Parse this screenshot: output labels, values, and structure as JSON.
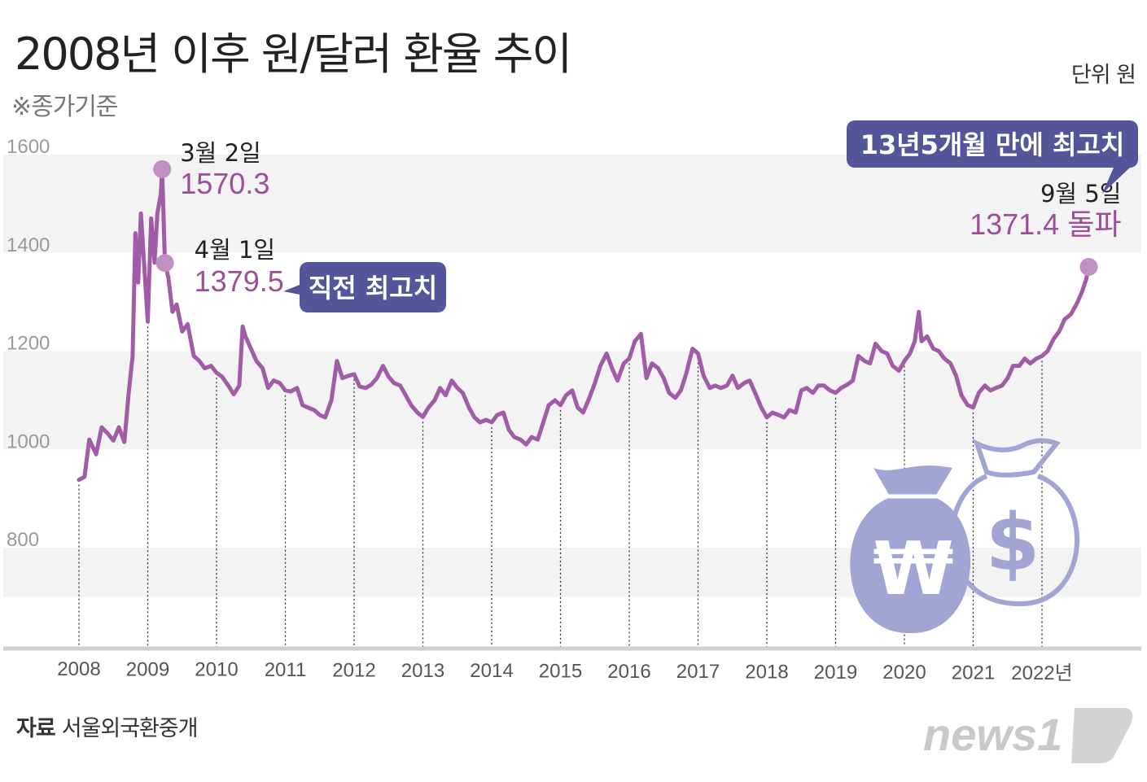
{
  "title": "2008년 이후 원/달러 환율 추이",
  "subtitle": "※종가기준",
  "unit": "단위 원",
  "source_label": "자료",
  "source_text": "서울외국환중개",
  "logo_text": "news1",
  "colors": {
    "line": "#a05ca6",
    "marker": "#c190c3",
    "annotation_value": "#9c4f97",
    "callout_box": "#55569a",
    "icon": "#a2a4d3",
    "band": "#f3f3f3"
  },
  "icons": [
    "won-money-bag-icon",
    "dollar-money-bag-icon"
  ],
  "chart_data": {
    "type": "line",
    "title": "2008년 이후 원/달러 환율 추이",
    "subtitle": "※종가기준",
    "unit": "원",
    "ylim": [
      800,
      1600
    ],
    "yticks": [
      "1600",
      "1400",
      "1200",
      "1000",
      "800"
    ],
    "xticks": [
      "2008",
      "2009",
      "2010",
      "2011",
      "2012",
      "2013",
      "2014",
      "2015",
      "2016",
      "2017",
      "2018",
      "2019",
      "2020",
      "2021",
      "2022년"
    ],
    "grid": "alternating horizontal bands",
    "series": [
      {
        "values": [
          [
            2008.0,
            938
          ],
          [
            2008.08,
            944
          ],
          [
            2008.15,
            1020
          ],
          [
            2008.25,
            990
          ],
          [
            2008.33,
            1045
          ],
          [
            2008.42,
            1032
          ],
          [
            2008.5,
            1018
          ],
          [
            2008.58,
            1045
          ],
          [
            2008.66,
            1015
          ],
          [
            2008.72,
            1110
          ],
          [
            2008.78,
            1190
          ],
          [
            2008.82,
            1440
          ],
          [
            2008.86,
            1340
          ],
          [
            2008.9,
            1480
          ],
          [
            2008.95,
            1370
          ],
          [
            2009.0,
            1260
          ],
          [
            2009.05,
            1470
          ],
          [
            2009.1,
            1380
          ],
          [
            2009.14,
            1480
          ],
          [
            2009.19,
            1520
          ],
          [
            2009.21,
            1570.3
          ],
          [
            2009.25,
            1379.5
          ],
          [
            2009.3,
            1350
          ],
          [
            2009.36,
            1280
          ],
          [
            2009.42,
            1295
          ],
          [
            2009.5,
            1240
          ],
          [
            2009.58,
            1255
          ],
          [
            2009.67,
            1190
          ],
          [
            2009.75,
            1180
          ],
          [
            2009.83,
            1165
          ],
          [
            2009.92,
            1170
          ],
          [
            2010.0,
            1156
          ],
          [
            2010.08,
            1148
          ],
          [
            2010.17,
            1130
          ],
          [
            2010.25,
            1112
          ],
          [
            2010.33,
            1130
          ],
          [
            2010.38,
            1250
          ],
          [
            2010.42,
            1230
          ],
          [
            2010.5,
            1205
          ],
          [
            2010.58,
            1180
          ],
          [
            2010.67,
            1165
          ],
          [
            2010.75,
            1125
          ],
          [
            2010.83,
            1140
          ],
          [
            2010.92,
            1135
          ],
          [
            2011.0,
            1120
          ],
          [
            2011.08,
            1118
          ],
          [
            2011.17,
            1125
          ],
          [
            2011.25,
            1090
          ],
          [
            2011.33,
            1085
          ],
          [
            2011.42,
            1080
          ],
          [
            2011.5,
            1070
          ],
          [
            2011.58,
            1065
          ],
          [
            2011.67,
            1100
          ],
          [
            2011.75,
            1180
          ],
          [
            2011.83,
            1145
          ],
          [
            2011.92,
            1150
          ],
          [
            2012.0,
            1153
          ],
          [
            2012.08,
            1128
          ],
          [
            2012.17,
            1125
          ],
          [
            2012.25,
            1132
          ],
          [
            2012.33,
            1145
          ],
          [
            2012.42,
            1170
          ],
          [
            2012.5,
            1148
          ],
          [
            2012.58,
            1135
          ],
          [
            2012.67,
            1130
          ],
          [
            2012.75,
            1110
          ],
          [
            2012.83,
            1090
          ],
          [
            2012.92,
            1075
          ],
          [
            2013.0,
            1066
          ],
          [
            2013.08,
            1085
          ],
          [
            2013.17,
            1100
          ],
          [
            2013.25,
            1125
          ],
          [
            2013.33,
            1110
          ],
          [
            2013.42,
            1140
          ],
          [
            2013.5,
            1125
          ],
          [
            2013.58,
            1115
          ],
          [
            2013.67,
            1085
          ],
          [
            2013.75,
            1065
          ],
          [
            2013.83,
            1055
          ],
          [
            2013.92,
            1060
          ],
          [
            2014.0,
            1055
          ],
          [
            2014.08,
            1070
          ],
          [
            2014.17,
            1075
          ],
          [
            2014.25,
            1040
          ],
          [
            2014.33,
            1025
          ],
          [
            2014.42,
            1020
          ],
          [
            2014.5,
            1010
          ],
          [
            2014.58,
            1025
          ],
          [
            2014.67,
            1020
          ],
          [
            2014.75,
            1055
          ],
          [
            2014.83,
            1090
          ],
          [
            2014.92,
            1100
          ],
          [
            2015.0,
            1090
          ],
          [
            2015.08,
            1110
          ],
          [
            2015.17,
            1120
          ],
          [
            2015.25,
            1085
          ],
          [
            2015.33,
            1075
          ],
          [
            2015.42,
            1105
          ],
          [
            2015.5,
            1135
          ],
          [
            2015.58,
            1170
          ],
          [
            2015.67,
            1195
          ],
          [
            2015.75,
            1165
          ],
          [
            2015.83,
            1140
          ],
          [
            2015.92,
            1175
          ],
          [
            2016.0,
            1185
          ],
          [
            2016.08,
            1220
          ],
          [
            2016.17,
            1235
          ],
          [
            2016.25,
            1145
          ],
          [
            2016.33,
            1175
          ],
          [
            2016.42,
            1165
          ],
          [
            2016.5,
            1145
          ],
          [
            2016.58,
            1115
          ],
          [
            2016.67,
            1105
          ],
          [
            2016.75,
            1120
          ],
          [
            2016.83,
            1155
          ],
          [
            2016.92,
            1205
          ],
          [
            2017.0,
            1195
          ],
          [
            2017.08,
            1150
          ],
          [
            2017.17,
            1125
          ],
          [
            2017.25,
            1130
          ],
          [
            2017.33,
            1125
          ],
          [
            2017.42,
            1130
          ],
          [
            2017.5,
            1150
          ],
          [
            2017.58,
            1125
          ],
          [
            2017.67,
            1135
          ],
          [
            2017.75,
            1140
          ],
          [
            2017.83,
            1115
          ],
          [
            2017.92,
            1085
          ],
          [
            2018.0,
            1065
          ],
          [
            2018.08,
            1075
          ],
          [
            2018.17,
            1070
          ],
          [
            2018.25,
            1065
          ],
          [
            2018.33,
            1080
          ],
          [
            2018.42,
            1075
          ],
          [
            2018.5,
            1120
          ],
          [
            2018.58,
            1125
          ],
          [
            2018.67,
            1115
          ],
          [
            2018.75,
            1130
          ],
          [
            2018.83,
            1130
          ],
          [
            2018.92,
            1120
          ],
          [
            2019.0,
            1115
          ],
          [
            2019.08,
            1125
          ],
          [
            2019.17,
            1132
          ],
          [
            2019.25,
            1140
          ],
          [
            2019.33,
            1190
          ],
          [
            2019.42,
            1180
          ],
          [
            2019.5,
            1175
          ],
          [
            2019.58,
            1215
          ],
          [
            2019.67,
            1200
          ],
          [
            2019.75,
            1195
          ],
          [
            2019.83,
            1170
          ],
          [
            2019.92,
            1160
          ],
          [
            2020.0,
            1180
          ],
          [
            2020.08,
            1195
          ],
          [
            2020.15,
            1220
          ],
          [
            2020.21,
            1280
          ],
          [
            2020.25,
            1220
          ],
          [
            2020.33,
            1230
          ],
          [
            2020.42,
            1205
          ],
          [
            2020.5,
            1200
          ],
          [
            2020.58,
            1185
          ],
          [
            2020.67,
            1175
          ],
          [
            2020.75,
            1150
          ],
          [
            2020.83,
            1110
          ],
          [
            2020.92,
            1090
          ],
          [
            2021.0,
            1085
          ],
          [
            2021.08,
            1115
          ],
          [
            2021.17,
            1130
          ],
          [
            2021.25,
            1120
          ],
          [
            2021.33,
            1125
          ],
          [
            2021.42,
            1130
          ],
          [
            2021.5,
            1145
          ],
          [
            2021.58,
            1170
          ],
          [
            2021.67,
            1170
          ],
          [
            2021.75,
            1185
          ],
          [
            2021.83,
            1175
          ],
          [
            2021.92,
            1185
          ],
          [
            2022.0,
            1190
          ],
          [
            2022.08,
            1200
          ],
          [
            2022.17,
            1225
          ],
          [
            2022.25,
            1240
          ],
          [
            2022.33,
            1265
          ],
          [
            2022.42,
            1275
          ],
          [
            2022.5,
            1295
          ],
          [
            2022.58,
            1320
          ],
          [
            2022.64,
            1345
          ],
          [
            2022.68,
            1371.4
          ]
        ]
      }
    ],
    "annotations": [
      {
        "date": "3월 2일",
        "value": "1570.3",
        "x": 2009.21,
        "y": 1570.3
      },
      {
        "date": "4월 1일",
        "value": "1379.5",
        "x": 2009.25,
        "y": 1379.5,
        "callout": "직전 최고치"
      },
      {
        "date": "9월 5일",
        "value": "1371.4 돌파",
        "x": 2022.68,
        "y": 1371.4,
        "callout": "13년5개월 만에 최고치"
      }
    ]
  }
}
